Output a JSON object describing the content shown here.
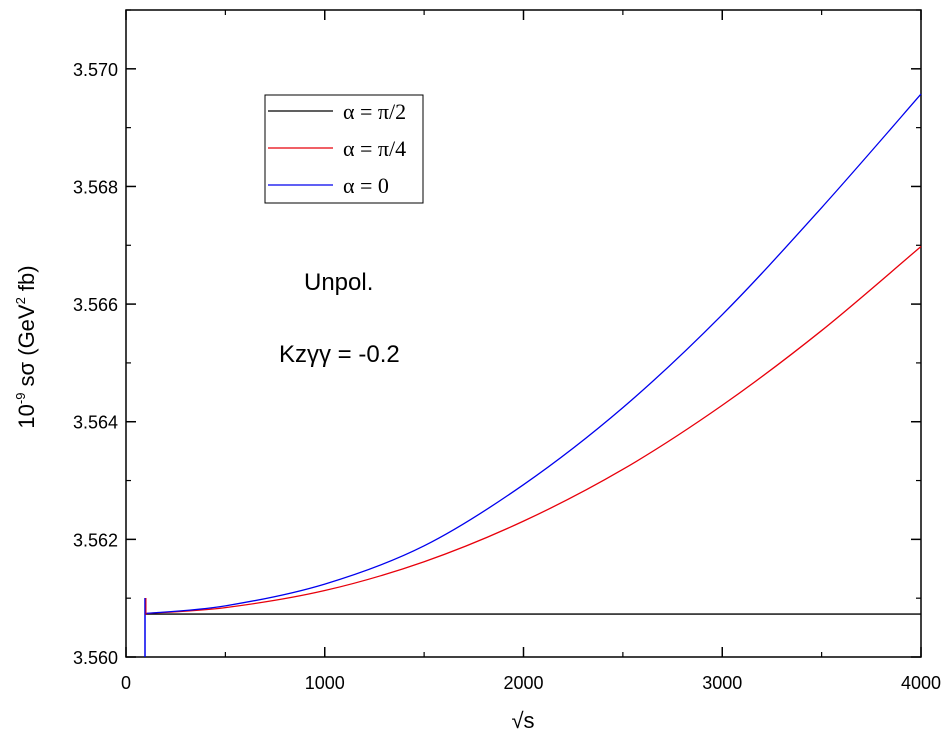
{
  "chart_data": {
    "type": "line",
    "title": "",
    "xlabel": "√s",
    "ylabel": {
      "base": "10",
      "exp": "-9",
      "mid": " sσ (GeV",
      "exp2": "2",
      "end": " fb)"
    },
    "xlim": [
      0,
      4000
    ],
    "ylim": [
      3.56,
      3.571
    ],
    "x_ticks": [
      0,
      1000,
      2000,
      3000,
      4000
    ],
    "x_tick_labels": [
      "0",
      "1000",
      "2000",
      "3000",
      "4000"
    ],
    "y_ticks": [
      3.56,
      3.562,
      3.564,
      3.566,
      3.568,
      3.57
    ],
    "y_tick_labels": [
      "3.560",
      "3.562",
      "3.564",
      "3.566",
      "3.568",
      "3.570"
    ],
    "grid": false,
    "legend_position": "top-left",
    "annotations": [
      "Unpol.",
      "Kzγγ = -0.2"
    ],
    "series": [
      {
        "name": "α = π/2",
        "color": "#000000",
        "x": [
          100,
          500,
          1000,
          1500,
          2000,
          2500,
          3000,
          3500,
          4000
        ],
        "y": [
          3.56073,
          3.56073,
          3.56073,
          3.56073,
          3.56073,
          3.56073,
          3.56073,
          3.56073,
          3.56073
        ]
      },
      {
        "name": "α = π/4",
        "color": "#e8000b",
        "x": [
          100,
          500,
          1000,
          1500,
          2000,
          2500,
          3000,
          3500,
          4000
        ],
        "y": [
          3.56074,
          3.56084,
          3.56113,
          3.56162,
          3.56231,
          3.56319,
          3.56428,
          3.56555,
          3.56698
        ]
      },
      {
        "name": "α = 0",
        "color": "#0000ee",
        "x": [
          100,
          500,
          1000,
          1500,
          2000,
          2500,
          3000,
          3500,
          4000
        ],
        "y": [
          3.56074,
          3.56087,
          3.56124,
          3.56189,
          3.56293,
          3.56424,
          3.56582,
          3.56764,
          3.56957
        ]
      }
    ]
  }
}
